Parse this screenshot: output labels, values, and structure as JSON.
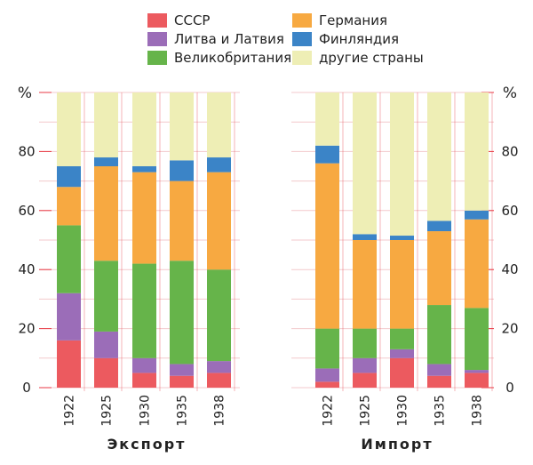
{
  "colors": {
    "ussr": "#ec5a5f",
    "baltic": "#9b6db8",
    "uk": "#66b44a",
    "germany": "#f7a941",
    "finland": "#3b84c7",
    "other": "#eeeeb5",
    "grid": "#f3c9cc",
    "axis_red": "#e83a45"
  },
  "legend": [
    {
      "key": "ussr",
      "label": "СССР"
    },
    {
      "key": "baltic",
      "label": "Литва и Латвия"
    },
    {
      "key": "uk",
      "label": "Великобритания"
    },
    {
      "key": "germany",
      "label": "Германия"
    },
    {
      "key": "finland",
      "label": "Финляндия"
    },
    {
      "key": "other",
      "label": "другие страны"
    }
  ],
  "chart_data": [
    {
      "type": "bar",
      "stacked": true,
      "title": "Экспорт",
      "ylabel": "%",
      "ylim": [
        0,
        100
      ],
      "yticks": [
        "0",
        "20",
        "40",
        "60",
        "80"
      ],
      "categories": [
        "1922",
        "1925",
        "1930",
        "1935",
        "1938"
      ],
      "series": [
        {
          "key": "ussr",
          "name": "СССР",
          "values": [
            16,
            10,
            5,
            4,
            5
          ]
        },
        {
          "key": "baltic",
          "name": "Литва и Латвия",
          "values": [
            16,
            9,
            5,
            4,
            4
          ]
        },
        {
          "key": "uk",
          "name": "Великобритания",
          "values": [
            23,
            24,
            32,
            35,
            31
          ]
        },
        {
          "key": "germany",
          "name": "Германия",
          "values": [
            13,
            32,
            31,
            27,
            33
          ]
        },
        {
          "key": "finland",
          "name": "Финляндия",
          "values": [
            7,
            3,
            2,
            7,
            5
          ]
        },
        {
          "key": "other",
          "name": "другие страны",
          "values": [
            25,
            22,
            25,
            23,
            22
          ]
        }
      ]
    },
    {
      "type": "bar",
      "stacked": true,
      "title": "Импорт",
      "ylabel": "%",
      "ylim": [
        0,
        100
      ],
      "yticks": [
        "0",
        "20",
        "40",
        "60",
        "80"
      ],
      "categories": [
        "1922",
        "1925",
        "1930",
        "1935",
        "1938"
      ],
      "series": [
        {
          "key": "ussr",
          "name": "СССР",
          "values": [
            2,
            5,
            10,
            4,
            5
          ]
        },
        {
          "key": "baltic",
          "name": "Литва и Латвия",
          "values": [
            4.5,
            5,
            3,
            4,
            1
          ]
        },
        {
          "key": "uk",
          "name": "Великобритания",
          "values": [
            13.5,
            10,
            7,
            20,
            21
          ]
        },
        {
          "key": "germany",
          "name": "Германия",
          "values": [
            56,
            30,
            30,
            25,
            30
          ]
        },
        {
          "key": "finland",
          "name": "Финляндия",
          "values": [
            6,
            2,
            1.5,
            3.5,
            3
          ]
        },
        {
          "key": "other",
          "name": "другие страны",
          "values": [
            18,
            48,
            48.5,
            43.5,
            40
          ]
        }
      ]
    }
  ]
}
